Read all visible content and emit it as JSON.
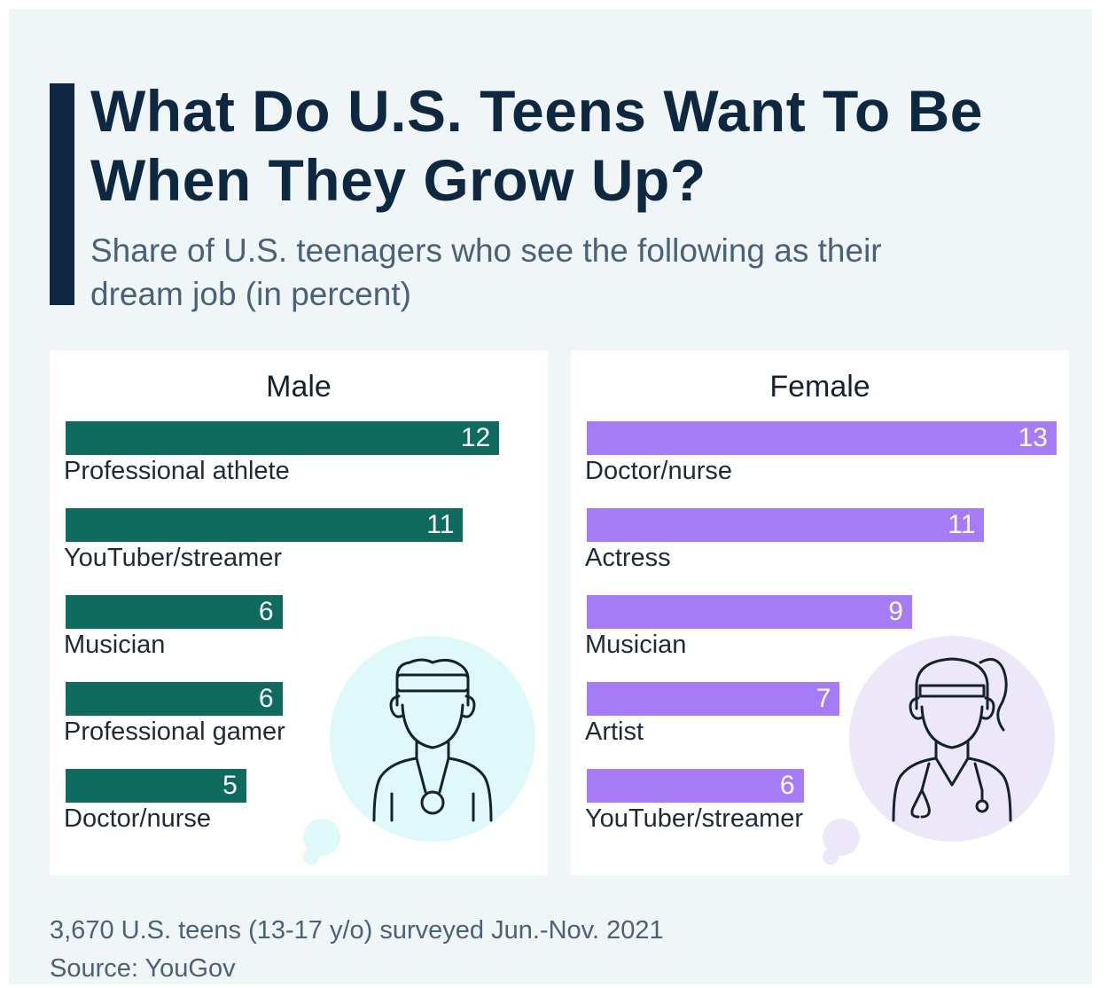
{
  "title": "What Do U.S. Teens Want To Be When They Grow Up?",
  "subtitle": "Share of U.S. teenagers who see the following as their dream job (in percent)",
  "chart_data": [
    {
      "type": "bar",
      "title": "Male",
      "color": "#0e6b5e",
      "categories": [
        "Professional athlete",
        "YouTuber/streamer",
        "Musician",
        "Professional gamer",
        "Doctor/nurse"
      ],
      "values": [
        12,
        11,
        6,
        6,
        5
      ],
      "xlim": [
        0,
        13
      ],
      "grid": false
    },
    {
      "type": "bar",
      "title": "Female",
      "color": "#a57cf5",
      "categories": [
        "Doctor/nurse",
        "Actress",
        "Musician",
        "Artist",
        "YouTuber/streamer"
      ],
      "values": [
        13,
        11,
        9,
        7,
        6
      ],
      "xlim": [
        0,
        13
      ],
      "grid": false
    }
  ],
  "illustrations": {
    "male": "athlete-with-medal-icon",
    "female": "doctor-with-stethoscope-icon"
  },
  "footer": {
    "note": "3,670 U.S. teens (13-17 y/o) surveyed Jun.-Nov. 2021",
    "source": "Source: YouGov"
  }
}
